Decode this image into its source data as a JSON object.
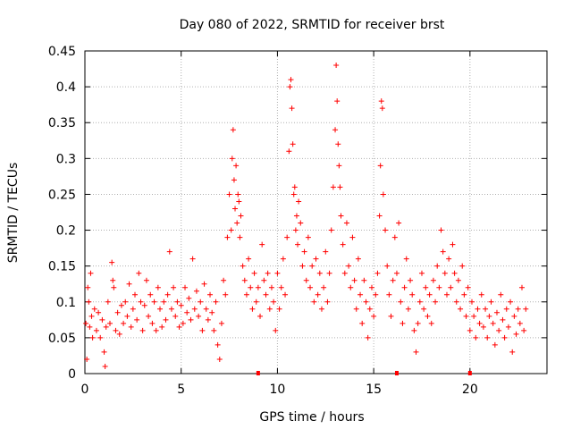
{
  "chart_data": {
    "type": "scatter",
    "title": "Day 080 of 2022, SRMTID for receiver brst",
    "xlabel": "GPS time / hours",
    "ylabel": "SRMTID / TECUs",
    "xlim": [
      0,
      24
    ],
    "ylim": [
      0,
      0.45
    ],
    "x_ticks": [
      0,
      5,
      10,
      15,
      20
    ],
    "x_tick_labels": [
      "0",
      "5",
      "10",
      "15",
      "20"
    ],
    "y_ticks": [
      0,
      0.05,
      0.1,
      0.15,
      0.2,
      0.25,
      0.3,
      0.35,
      0.4,
      0.45
    ],
    "y_tick_labels": [
      "0",
      "0.05",
      "0.1",
      "0.15",
      "0.2",
      "0.25",
      "0.3",
      "0.35",
      "0.4",
      "0.45"
    ],
    "grid": true,
    "marker": "+",
    "color": "#ff0000",
    "series": [
      {
        "name": "SRMTID",
        "points": [
          [
            0.05,
            0.07
          ],
          [
            0.1,
            0.02
          ],
          [
            0.15,
            0.12
          ],
          [
            0.2,
            0.1
          ],
          [
            0.25,
            0.065
          ],
          [
            0.3,
            0.14
          ],
          [
            0.35,
            0.08
          ],
          [
            0.4,
            0.05
          ],
          [
            0.5,
            0.09
          ],
          [
            0.6,
            0.06
          ],
          [
            0.7,
            0.085
          ],
          [
            0.8,
            0.05
          ],
          [
            0.9,
            0.075
          ],
          [
            1.0,
            0.03
          ],
          [
            1.05,
            0.01
          ],
          [
            1.1,
            0.065
          ],
          [
            1.2,
            0.1
          ],
          [
            1.3,
            0.07
          ],
          [
            1.4,
            0.155
          ],
          [
            1.45,
            0.13
          ],
          [
            1.5,
            0.12
          ],
          [
            1.6,
            0.06
          ],
          [
            1.7,
            0.085
          ],
          [
            1.8,
            0.055
          ],
          [
            1.9,
            0.095
          ],
          [
            2.0,
            0.07
          ],
          [
            2.1,
            0.1
          ],
          [
            2.2,
            0.08
          ],
          [
            2.3,
            0.125
          ],
          [
            2.4,
            0.065
          ],
          [
            2.5,
            0.09
          ],
          [
            2.6,
            0.11
          ],
          [
            2.7,
            0.075
          ],
          [
            2.8,
            0.14
          ],
          [
            2.9,
            0.1
          ],
          [
            3.0,
            0.06
          ],
          [
            3.1,
            0.095
          ],
          [
            3.2,
            0.13
          ],
          [
            3.3,
            0.08
          ],
          [
            3.4,
            0.11
          ],
          [
            3.5,
            0.07
          ],
          [
            3.6,
            0.1
          ],
          [
            3.7,
            0.06
          ],
          [
            3.8,
            0.12
          ],
          [
            3.9,
            0.09
          ],
          [
            4.0,
            0.065
          ],
          [
            4.1,
            0.1
          ],
          [
            4.2,
            0.075
          ],
          [
            4.3,
            0.11
          ],
          [
            4.4,
            0.17
          ],
          [
            4.5,
            0.09
          ],
          [
            4.6,
            0.12
          ],
          [
            4.7,
            0.08
          ],
          [
            4.8,
            0.1
          ],
          [
            4.9,
            0.065
          ],
          [
            5.0,
            0.095
          ],
          [
            5.1,
            0.07
          ],
          [
            5.2,
            0.12
          ],
          [
            5.3,
            0.085
          ],
          [
            5.4,
            0.105
          ],
          [
            5.5,
            0.075
          ],
          [
            5.6,
            0.16
          ],
          [
            5.7,
            0.09
          ],
          [
            5.8,
            0.115
          ],
          [
            5.9,
            0.08
          ],
          [
            6.0,
            0.1
          ],
          [
            6.1,
            0.06
          ],
          [
            6.2,
            0.125
          ],
          [
            6.3,
            0.09
          ],
          [
            6.4,
            0.075
          ],
          [
            6.5,
            0.11
          ],
          [
            6.6,
            0.085
          ],
          [
            6.7,
            0.06
          ],
          [
            6.8,
            0.1
          ],
          [
            6.9,
            0.04
          ],
          [
            7.0,
            0.02
          ],
          [
            7.1,
            0.07
          ],
          [
            7.2,
            0.13
          ],
          [
            7.3,
            0.11
          ],
          [
            7.4,
            0.19
          ],
          [
            7.5,
            0.25
          ],
          [
            7.6,
            0.2
          ],
          [
            7.65,
            0.3
          ],
          [
            7.7,
            0.34
          ],
          [
            7.75,
            0.27
          ],
          [
            7.8,
            0.23
          ],
          [
            7.85,
            0.29
          ],
          [
            7.9,
            0.21
          ],
          [
            7.95,
            0.25
          ],
          [
            8.0,
            0.24
          ],
          [
            8.05,
            0.19
          ],
          [
            8.1,
            0.22
          ],
          [
            8.2,
            0.15
          ],
          [
            8.3,
            0.13
          ],
          [
            8.4,
            0.11
          ],
          [
            8.5,
            0.16
          ],
          [
            8.6,
            0.12
          ],
          [
            8.7,
            0.09
          ],
          [
            8.8,
            0.14
          ],
          [
            8.9,
            0.1
          ],
          [
            9.0,
            0.12
          ],
          [
            9.1,
            0.08
          ],
          [
            9.2,
            0.18
          ],
          [
            9.3,
            0.13
          ],
          [
            9.4,
            0.11
          ],
          [
            9.5,
            0.14
          ],
          [
            9.6,
            0.09
          ],
          [
            9.7,
            0.12
          ],
          [
            9.8,
            0.1
          ],
          [
            9.9,
            0.06
          ],
          [
            10.0,
            0.14
          ],
          [
            10.1,
            0.09
          ],
          [
            10.2,
            0.12
          ],
          [
            10.3,
            0.16
          ],
          [
            10.4,
            0.11
          ],
          [
            10.5,
            0.19
          ],
          [
            10.6,
            0.31
          ],
          [
            10.65,
            0.4
          ],
          [
            10.7,
            0.41
          ],
          [
            10.75,
            0.37
          ],
          [
            10.8,
            0.32
          ],
          [
            10.85,
            0.25
          ],
          [
            10.9,
            0.26
          ],
          [
            10.95,
            0.2
          ],
          [
            11.0,
            0.22
          ],
          [
            11.05,
            0.18
          ],
          [
            11.1,
            0.24
          ],
          [
            11.2,
            0.21
          ],
          [
            11.3,
            0.15
          ],
          [
            11.4,
            0.17
          ],
          [
            11.5,
            0.13
          ],
          [
            11.6,
            0.19
          ],
          [
            11.7,
            0.12
          ],
          [
            11.8,
            0.15
          ],
          [
            11.9,
            0.1
          ],
          [
            12.0,
            0.16
          ],
          [
            12.1,
            0.11
          ],
          [
            12.2,
            0.14
          ],
          [
            12.3,
            0.09
          ],
          [
            12.4,
            0.12
          ],
          [
            12.5,
            0.17
          ],
          [
            12.6,
            0.1
          ],
          [
            12.7,
            0.14
          ],
          [
            12.8,
            0.2
          ],
          [
            12.9,
            0.26
          ],
          [
            13.0,
            0.34
          ],
          [
            13.05,
            0.43
          ],
          [
            13.1,
            0.38
          ],
          [
            13.15,
            0.32
          ],
          [
            13.2,
            0.29
          ],
          [
            13.25,
            0.26
          ],
          [
            13.3,
            0.22
          ],
          [
            13.4,
            0.18
          ],
          [
            13.5,
            0.14
          ],
          [
            13.6,
            0.21
          ],
          [
            13.7,
            0.15
          ],
          [
            13.8,
            0.12
          ],
          [
            13.9,
            0.19
          ],
          [
            14.0,
            0.13
          ],
          [
            14.1,
            0.09
          ],
          [
            14.2,
            0.16
          ],
          [
            14.3,
            0.11
          ],
          [
            14.4,
            0.07
          ],
          [
            14.5,
            0.13
          ],
          [
            14.6,
            0.1
          ],
          [
            14.7,
            0.05
          ],
          [
            14.8,
            0.09
          ],
          [
            14.9,
            0.12
          ],
          [
            15.0,
            0.08
          ],
          [
            15.1,
            0.11
          ],
          [
            15.2,
            0.14
          ],
          [
            15.3,
            0.22
          ],
          [
            15.35,
            0.29
          ],
          [
            15.4,
            0.38
          ],
          [
            15.45,
            0.37
          ],
          [
            15.5,
            0.25
          ],
          [
            15.6,
            0.2
          ],
          [
            15.7,
            0.15
          ],
          [
            15.8,
            0.11
          ],
          [
            15.9,
            0.08
          ],
          [
            16.0,
            0.13
          ],
          [
            16.1,
            0.19
          ],
          [
            16.2,
            0.14
          ],
          [
            16.3,
            0.21
          ],
          [
            16.4,
            0.1
          ],
          [
            16.5,
            0.07
          ],
          [
            16.6,
            0.12
          ],
          [
            16.7,
            0.16
          ],
          [
            16.8,
            0.09
          ],
          [
            16.9,
            0.13
          ],
          [
            17.0,
            0.11
          ],
          [
            17.1,
            0.06
          ],
          [
            17.2,
            0.03
          ],
          [
            17.3,
            0.07
          ],
          [
            17.4,
            0.1
          ],
          [
            17.5,
            0.14
          ],
          [
            17.6,
            0.09
          ],
          [
            17.7,
            0.12
          ],
          [
            17.8,
            0.08
          ],
          [
            17.9,
            0.11
          ],
          [
            18.0,
            0.07
          ],
          [
            18.1,
            0.13
          ],
          [
            18.2,
            0.1
          ],
          [
            18.3,
            0.15
          ],
          [
            18.4,
            0.12
          ],
          [
            18.5,
            0.2
          ],
          [
            18.6,
            0.17
          ],
          [
            18.7,
            0.14
          ],
          [
            18.8,
            0.11
          ],
          [
            18.9,
            0.16
          ],
          [
            19.0,
            0.12
          ],
          [
            19.1,
            0.18
          ],
          [
            19.2,
            0.14
          ],
          [
            19.3,
            0.1
          ],
          [
            19.4,
            0.13
          ],
          [
            19.5,
            0.09
          ],
          [
            19.6,
            0.15
          ],
          [
            19.7,
            0.11
          ],
          [
            19.8,
            0.08
          ],
          [
            19.9,
            0.12
          ],
          [
            20.0,
            0.06
          ],
          [
            20.1,
            0.1
          ],
          [
            20.2,
            0.08
          ],
          [
            20.3,
            0.05
          ],
          [
            20.4,
            0.09
          ],
          [
            20.5,
            0.07
          ],
          [
            20.6,
            0.11
          ],
          [
            20.7,
            0.065
          ],
          [
            20.8,
            0.09
          ],
          [
            20.9,
            0.05
          ],
          [
            21.0,
            0.08
          ],
          [
            21.1,
            0.1
          ],
          [
            21.2,
            0.07
          ],
          [
            21.3,
            0.04
          ],
          [
            21.4,
            0.085
          ],
          [
            21.5,
            0.06
          ],
          [
            21.6,
            0.11
          ],
          [
            21.7,
            0.075
          ],
          [
            21.8,
            0.05
          ],
          [
            21.9,
            0.09
          ],
          [
            22.0,
            0.065
          ],
          [
            22.1,
            0.1
          ],
          [
            22.2,
            0.03
          ],
          [
            22.3,
            0.08
          ],
          [
            22.4,
            0.055
          ],
          [
            22.5,
            0.09
          ],
          [
            22.6,
            0.07
          ],
          [
            22.7,
            0.12
          ],
          [
            22.8,
            0.06
          ],
          [
            22.9,
            0.09
          ]
        ]
      }
    ],
    "gap_markers": [
      9.0,
      16.2,
      20.0
    ]
  }
}
